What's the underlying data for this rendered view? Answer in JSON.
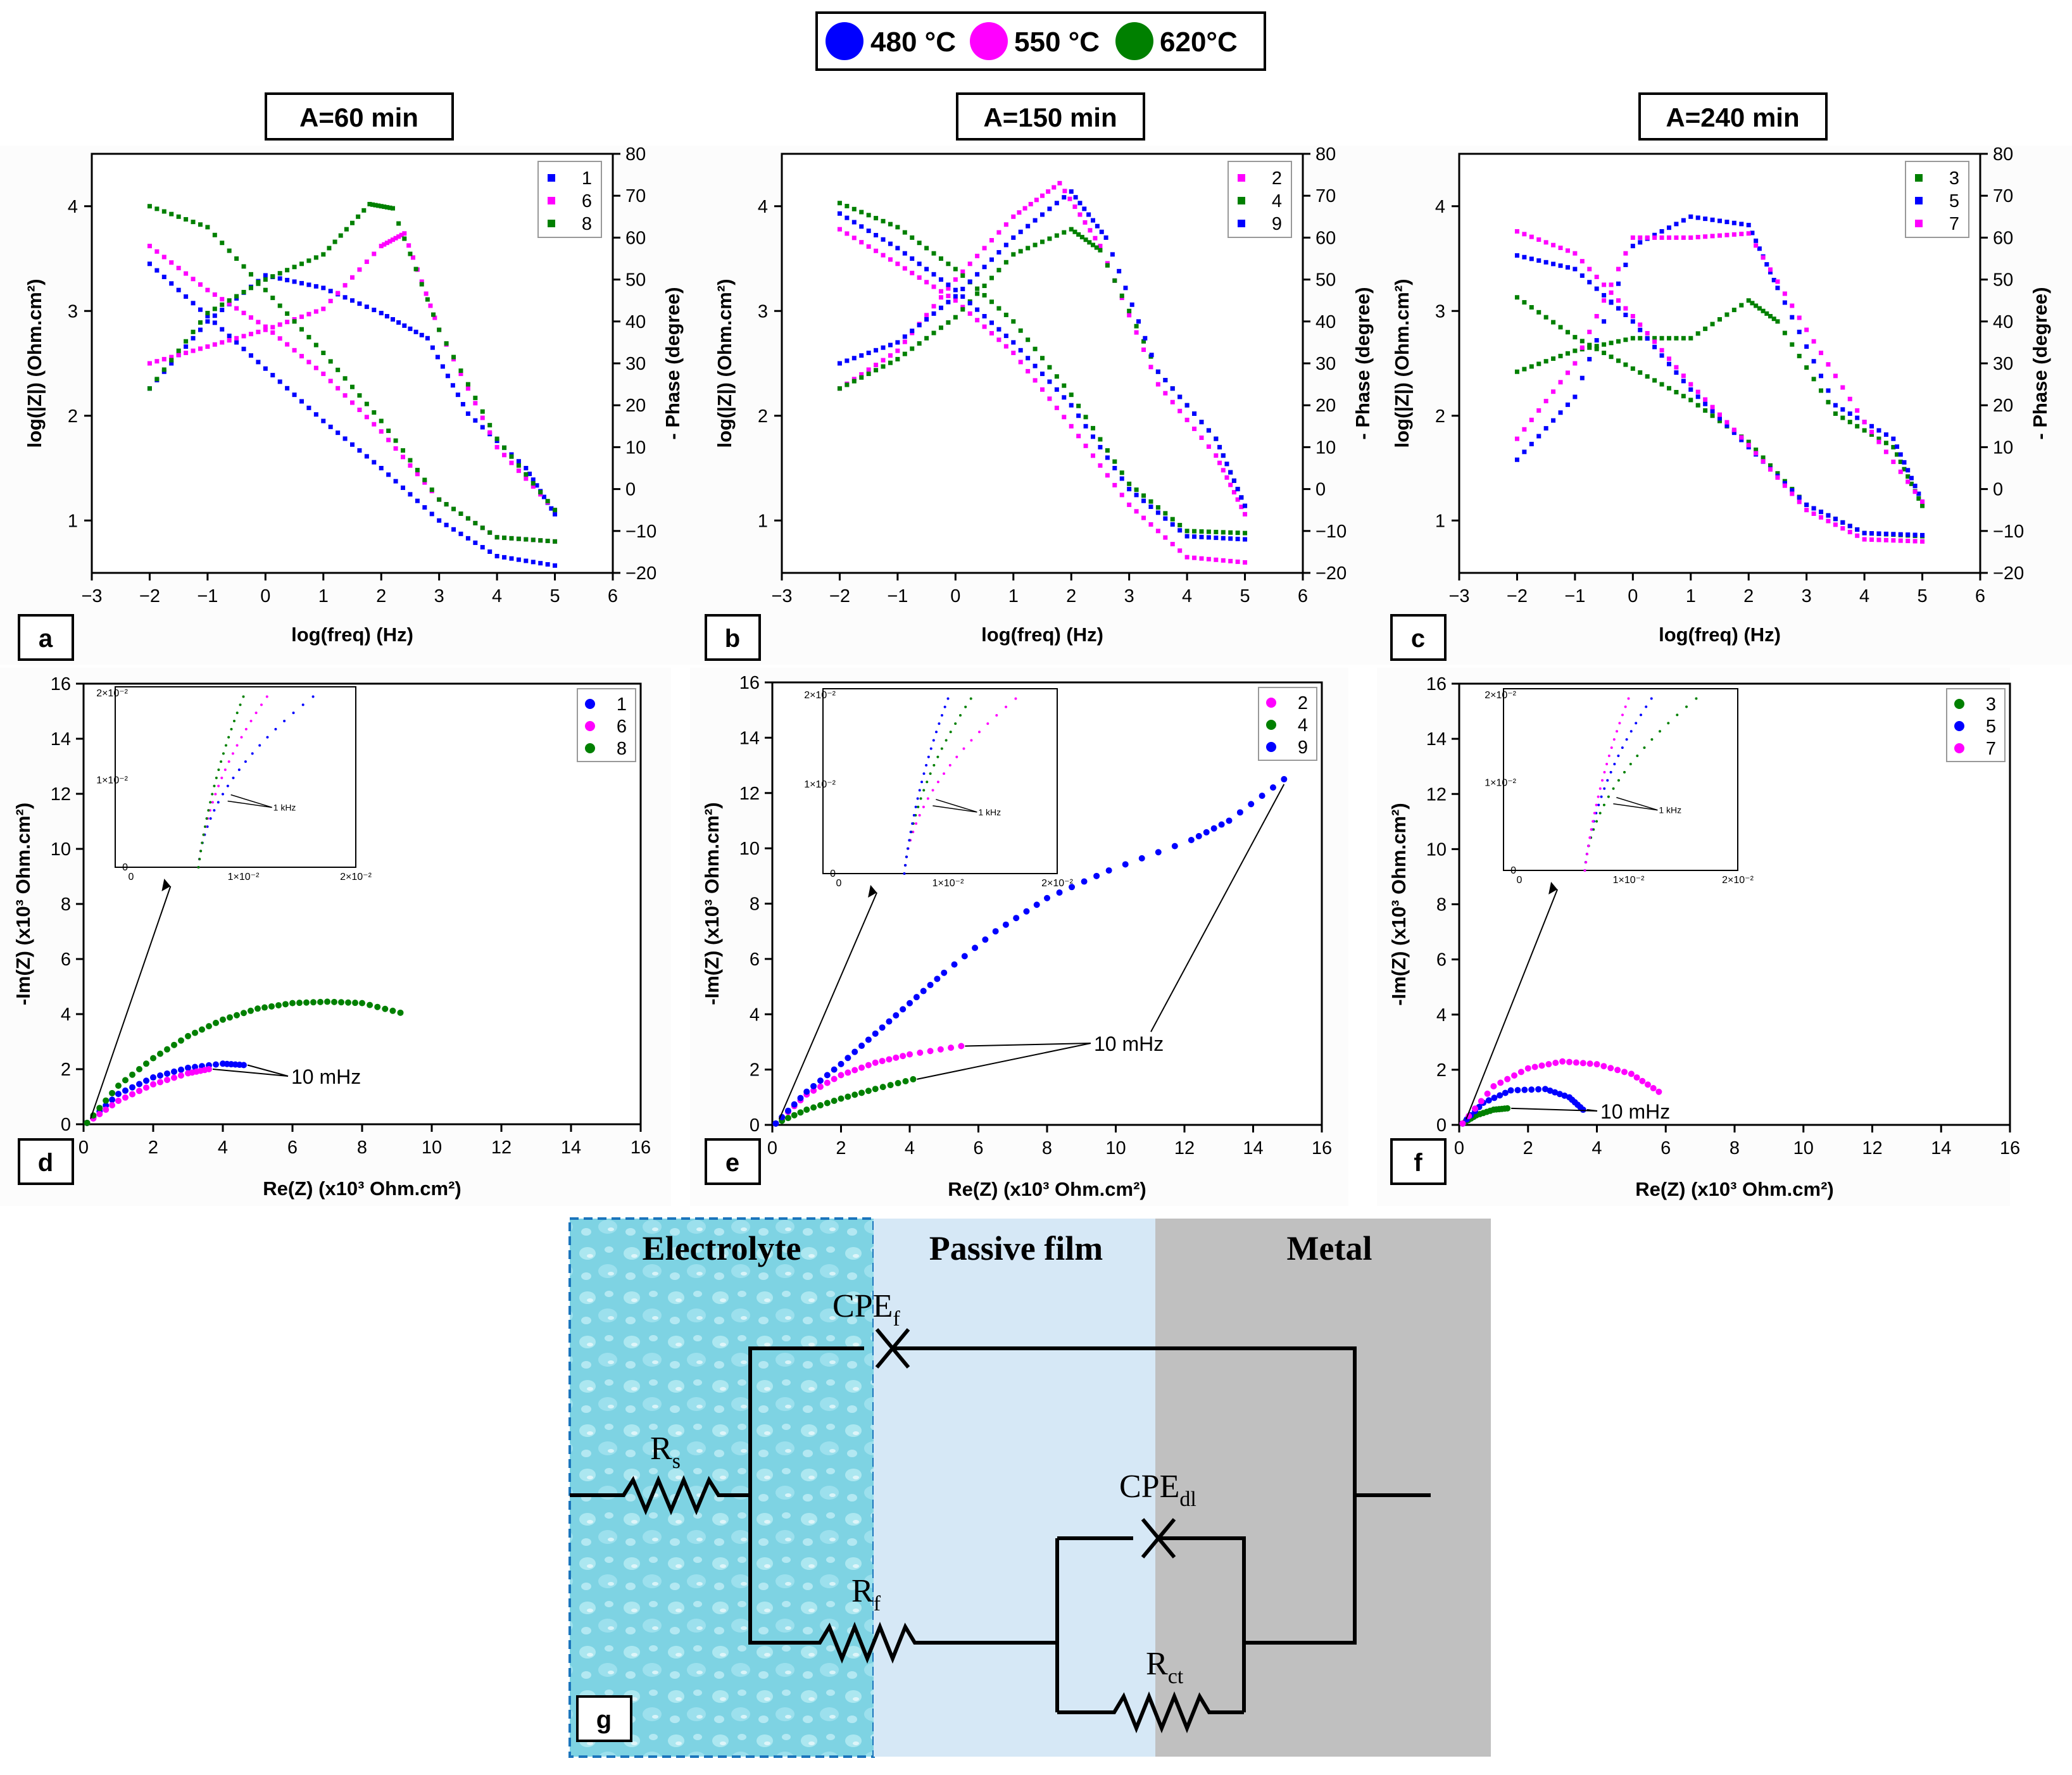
{
  "legend": {
    "items": [
      {
        "label": "480 °C",
        "color": "#0000ff"
      },
      {
        "label": "550 °C",
        "color": "#ff00ff"
      },
      {
        "label": "620°C",
        "color": "#008000"
      }
    ]
  },
  "colors": {
    "c480": "#0000ff",
    "c550": "#ff00ff",
    "c620": "#008000"
  },
  "bode": {
    "xlabel": "log(freq) (Hz)",
    "ylabel_left": "log(|Z|) (Ohm.cm²)",
    "ylabel_right": "- Phase (degree)",
    "xticks": [
      "−3",
      "−2",
      "−1",
      "0",
      "1",
      "2",
      "3",
      "4",
      "5",
      "6"
    ],
    "yticks_left": [
      "1",
      "2",
      "3",
      "4"
    ],
    "yticks_right": [
      "−20",
      "−10",
      "0",
      "10",
      "20",
      "30",
      "40",
      "50",
      "60",
      "70",
      "80"
    ]
  },
  "nyquist": {
    "xlabel": "Re(Z) (x10³ Ohm.cm²)",
    "ylabel": "-Im(Z) (x10³ Ohm.cm²)",
    "xticks": [
      "0",
      "2",
      "4",
      "6",
      "8",
      "10",
      "12",
      "14",
      "16"
    ],
    "yticks": [
      "0",
      "2",
      "4",
      "6",
      "8",
      "10",
      "12",
      "14",
      "16"
    ],
    "annotation": "10 mHz",
    "inset_annotation": "1 kHz",
    "inset_xticks": [
      "0",
      "1×10⁻²",
      "2×10⁻²"
    ],
    "inset_yticks": [
      "0",
      "1×10⁻²",
      "2×10⁻²"
    ]
  },
  "conditions": [
    "A=60 min",
    "A=150 min",
    "A=240 min"
  ],
  "panel_labels": [
    "a",
    "b",
    "c",
    "d",
    "e",
    "f",
    "g"
  ],
  "circuit": {
    "regions": [
      "Electrolyte",
      "Passive film",
      "Metal"
    ],
    "Rs": {
      "main": "R",
      "sub": "s"
    },
    "Rf": {
      "main": "R",
      "sub": "f"
    },
    "Rct": {
      "main": "R",
      "sub": "ct"
    },
    "CPEf": {
      "main": "CPE",
      "sub": "f"
    },
    "CPEdl": {
      "main": "CPE",
      "sub": "dl"
    }
  },
  "chart_data": [
    {
      "type": "scatter",
      "panel": "a",
      "title": "A=60 min",
      "xlabel": "log(freq) (Hz)",
      "ylabel": "log(|Z|) (Ohm.cm²)",
      "y2label": "- Phase (degree)",
      "xlim": [
        -3,
        6
      ],
      "ylim": [
        0.5,
        4.5
      ],
      "y2lim": [
        -20,
        80
      ],
      "series": [
        {
          "name": "1",
          "color": "#0000ff",
          "logZ": [
            [
              -2,
              3.45
            ],
            [
              -1,
              2.95
            ],
            [
              0,
              2.45
            ],
            [
              1,
              1.95
            ],
            [
              2,
              1.5
            ],
            [
              3,
              1.0
            ],
            [
              4,
              0.66
            ],
            [
              5,
              0.57
            ]
          ],
          "phase": [
            [
              -2,
              24
            ],
            [
              -1,
              40
            ],
            [
              0,
              51
            ],
            [
              1,
              48
            ],
            [
              2,
              42
            ],
            [
              2.8,
              36
            ],
            [
              3.5,
              18
            ],
            [
              4.5,
              5
            ],
            [
              5,
              -6
            ]
          ]
        },
        {
          "name": "6",
          "color": "#ff00ff",
          "logZ": [
            [
              -2,
              3.62
            ],
            [
              -1,
              3.2
            ],
            [
              0,
              2.85
            ],
            [
              1,
              2.4
            ],
            [
              2,
              1.85
            ],
            [
              3,
              1.2
            ],
            [
              4,
              0.84
            ],
            [
              5,
              0.8
            ]
          ],
          "phase": [
            [
              -2,
              30
            ],
            [
              -1,
              34
            ],
            [
              0,
              38
            ],
            [
              1,
              43
            ],
            [
              2,
              58
            ],
            [
              2.4,
              61
            ],
            [
              3,
              38
            ],
            [
              4,
              10
            ],
            [
              5,
              -5
            ]
          ]
        },
        {
          "name": "8",
          "color": "#008000",
          "logZ": [
            [
              -2,
              4.0
            ],
            [
              -1,
              3.8
            ],
            [
              0,
              3.2
            ],
            [
              1,
              2.6
            ],
            [
              2,
              1.95
            ],
            [
              3,
              1.2
            ],
            [
              4,
              0.84
            ],
            [
              5,
              0.8
            ]
          ],
          "phase": [
            [
              -2,
              24
            ],
            [
              -1,
              42
            ],
            [
              0,
              50
            ],
            [
              1,
              56
            ],
            [
              1.8,
              68
            ],
            [
              2.2,
              67
            ],
            [
              3,
              38
            ],
            [
              4,
              12
            ],
            [
              5,
              -5
            ]
          ]
        }
      ]
    },
    {
      "type": "scatter",
      "panel": "b",
      "title": "A=150 min",
      "xlabel": "log(freq) (Hz)",
      "ylabel": "log(|Z|) (Ohm.cm²)",
      "y2label": "- Phase (degree)",
      "xlim": [
        -3,
        6
      ],
      "ylim": [
        0.5,
        4.5
      ],
      "y2lim": [
        -20,
        80
      ],
      "series": [
        {
          "name": "2",
          "color": "#ff00ff",
          "logZ": [
            [
              -2,
              3.78
            ],
            [
              -1,
              3.45
            ],
            [
              0,
              3.1
            ],
            [
              1,
              2.6
            ],
            [
              2,
              1.9
            ],
            [
              3,
              1.15
            ],
            [
              4,
              0.65
            ],
            [
              5,
              0.6
            ]
          ],
          "phase": [
            [
              -2,
              24
            ],
            [
              -1,
              33
            ],
            [
              0,
              50
            ],
            [
              1,
              65
            ],
            [
              1.8,
              73
            ],
            [
              2.5,
              58
            ],
            [
              3.5,
              25
            ],
            [
              4.5,
              8
            ],
            [
              5,
              -6
            ]
          ]
        },
        {
          "name": "4",
          "color": "#008000",
          "logZ": [
            [
              -2,
              4.03
            ],
            [
              -1,
              3.8
            ],
            [
              0,
              3.4
            ],
            [
              1,
              2.9
            ],
            [
              2,
              2.2
            ],
            [
              3,
              1.35
            ],
            [
              4,
              0.9
            ],
            [
              5,
              0.88
            ]
          ],
          "phase": [
            [
              -2,
              24
            ],
            [
              -1,
              31
            ],
            [
              0,
              41
            ],
            [
              1,
              56
            ],
            [
              2,
              62
            ],
            [
              2.5,
              57
            ],
            [
              3.5,
              28
            ],
            [
              4.5,
              12
            ],
            [
              5,
              -4
            ]
          ]
        },
        {
          "name": "9",
          "color": "#0000ff",
          "logZ": [
            [
              -2,
              3.93
            ],
            [
              -1,
              3.6
            ],
            [
              0,
              3.2
            ],
            [
              1,
              2.7
            ],
            [
              2,
              2.1
            ],
            [
              3,
              1.3
            ],
            [
              4,
              0.85
            ],
            [
              5,
              0.82
            ]
          ],
          "phase": [
            [
              -2,
              30
            ],
            [
              -1,
              35
            ],
            [
              0,
              46
            ],
            [
              1,
              60
            ],
            [
              2,
              71
            ],
            [
              2.6,
              60
            ],
            [
              3.5,
              28
            ],
            [
              4.5,
              12
            ],
            [
              5,
              -4
            ]
          ]
        }
      ]
    },
    {
      "type": "scatter",
      "panel": "c",
      "title": "A=240 min",
      "xlabel": "log(freq) (Hz)",
      "ylabel": "log(|Z|) (Ohm.cm²)",
      "y2label": "- Phase (degree)",
      "xlim": [
        -3,
        6
      ],
      "ylim": [
        0.5,
        4.5
      ],
      "y2lim": [
        -20,
        80
      ],
      "series": [
        {
          "name": "3",
          "color": "#008000",
          "logZ": [
            [
              -2,
              3.13
            ],
            [
              -1,
              2.75
            ],
            [
              0,
              2.45
            ],
            [
              1,
              2.15
            ],
            [
              2,
              1.75
            ],
            [
              3,
              1.15
            ],
            [
              4,
              0.88
            ],
            [
              5,
              0.85
            ]
          ],
          "phase": [
            [
              -2,
              28
            ],
            [
              -1,
              33
            ],
            [
              0,
              36
            ],
            [
              1,
              36
            ],
            [
              2,
              45
            ],
            [
              2.5,
              40
            ],
            [
              3.5,
              18
            ],
            [
              4.5,
              10
            ],
            [
              5,
              -4
            ]
          ]
        },
        {
          "name": "5",
          "color": "#0000ff",
          "logZ": [
            [
              -2,
              3.53
            ],
            [
              -1,
              3.4
            ],
            [
              0,
              2.9
            ],
            [
              1,
              2.25
            ],
            [
              2,
              1.7
            ],
            [
              3,
              1.15
            ],
            [
              4,
              0.88
            ],
            [
              5,
              0.86
            ]
          ],
          "phase": [
            [
              -2,
              7
            ],
            [
              -1,
              22
            ],
            [
              0,
              58
            ],
            [
              1,
              65
            ],
            [
              2,
              63
            ],
            [
              2.5,
              48
            ],
            [
              3.5,
              20
            ],
            [
              4.5,
              12
            ],
            [
              5,
              -3
            ]
          ]
        },
        {
          "name": "7",
          "color": "#ff00ff",
          "logZ": [
            [
              -2,
              3.76
            ],
            [
              -1,
              3.55
            ],
            [
              0,
              2.95
            ],
            [
              1,
              2.3
            ],
            [
              2,
              1.72
            ],
            [
              3,
              1.1
            ],
            [
              4,
              0.82
            ],
            [
              5,
              0.8
            ]
          ],
          "phase": [
            [
              -2,
              12
            ],
            [
              -1,
              30
            ],
            [
              0,
              60
            ],
            [
              1,
              60
            ],
            [
              2,
              61
            ],
            [
              3,
              38
            ],
            [
              4,
              16
            ],
            [
              5,
              -3
            ]
          ]
        }
      ]
    },
    {
      "type": "scatter",
      "panel": "d",
      "title": "",
      "xlabel": "Re(Z) (x10³ Ohm.cm²)",
      "ylabel": "-Im(Z) (x10³ Ohm.cm²)",
      "xlim": [
        0,
        16
      ],
      "ylim": [
        0,
        16
      ],
      "series": [
        {
          "name": "1",
          "color": "#0000ff",
          "points": [
            [
              0.1,
              0.05
            ],
            [
              1,
              1.1
            ],
            [
              2,
              1.7
            ],
            [
              3,
              2.05
            ],
            [
              4,
              2.2
            ],
            [
              4.6,
              2.15
            ]
          ]
        },
        {
          "name": "6",
          "color": "#ff00ff",
          "points": [
            [
              0.1,
              0.05
            ],
            [
              1,
              0.85
            ],
            [
              2,
              1.45
            ],
            [
              3,
              1.85
            ],
            [
              3.6,
              2.0
            ]
          ]
        },
        {
          "name": "8",
          "color": "#008000",
          "points": [
            [
              0.1,
              0.05
            ],
            [
              1,
              1.4
            ],
            [
              2,
              2.4
            ],
            [
              3,
              3.2
            ],
            [
              4,
              3.8
            ],
            [
              5,
              4.2
            ],
            [
              6,
              4.4
            ],
            [
              7,
              4.45
            ],
            [
              8,
              4.4
            ],
            [
              9.1,
              4.05
            ]
          ]
        }
      ]
    },
    {
      "type": "scatter",
      "panel": "e",
      "title": "",
      "xlabel": "Re(Z) (x10³ Ohm.cm²)",
      "ylabel": "-Im(Z) (x10³ Ohm.cm²)",
      "xlim": [
        0,
        16
      ],
      "ylim": [
        0,
        16
      ],
      "series": [
        {
          "name": "2",
          "color": "#ff00ff",
          "points": [
            [
              0.1,
              0.05
            ],
            [
              1,
              1.1
            ],
            [
              2,
              1.8
            ],
            [
              3,
              2.25
            ],
            [
              4,
              2.55
            ],
            [
              5.5,
              2.85
            ]
          ]
        },
        {
          "name": "4",
          "color": "#008000",
          "points": [
            [
              0.1,
              0.05
            ],
            [
              1,
              0.55
            ],
            [
              2,
              0.95
            ],
            [
              3,
              1.3
            ],
            [
              4.1,
              1.65
            ]
          ]
        },
        {
          "name": "9",
          "color": "#0000ff",
          "points": [
            [
              0.1,
              0.05
            ],
            [
              1,
              1.2
            ],
            [
              2,
              2.2
            ],
            [
              3,
              3.3
            ],
            [
              4,
              4.4
            ],
            [
              5,
              5.5
            ],
            [
              6.5,
              7.0
            ],
            [
              8,
              8.2
            ],
            [
              9.8,
              9.2
            ],
            [
              12.2,
              10.3
            ],
            [
              13.3,
              11.0
            ],
            [
              14.9,
              12.5
            ]
          ]
        }
      ]
    },
    {
      "type": "scatter",
      "panel": "f",
      "title": "",
      "xlabel": "Re(Z) (x10³ Ohm.cm²)",
      "ylabel": "-Im(Z) (x10³ Ohm.cm²)",
      "xlim": [
        0,
        16
      ],
      "ylim": [
        0,
        16
      ],
      "series": [
        {
          "name": "3",
          "color": "#008000",
          "points": [
            [
              0.1,
              0.05
            ],
            [
              0.5,
              0.35
            ],
            [
              1,
              0.55
            ],
            [
              1.4,
              0.6
            ]
          ]
        },
        {
          "name": "5",
          "color": "#0000ff",
          "points": [
            [
              0.1,
              0.05
            ],
            [
              0.7,
              0.8
            ],
            [
              1.5,
              1.25
            ],
            [
              2.5,
              1.3
            ],
            [
              3.2,
              1.0
            ],
            [
              3.6,
              0.55
            ]
          ]
        },
        {
          "name": "7",
          "color": "#ff00ff",
          "points": [
            [
              0.1,
              0.05
            ],
            [
              1,
              1.4
            ],
            [
              2,
              2.05
            ],
            [
              3,
              2.3
            ],
            [
              4,
              2.2
            ],
            [
              5,
              1.85
            ],
            [
              5.8,
              1.2
            ]
          ]
        }
      ]
    }
  ]
}
